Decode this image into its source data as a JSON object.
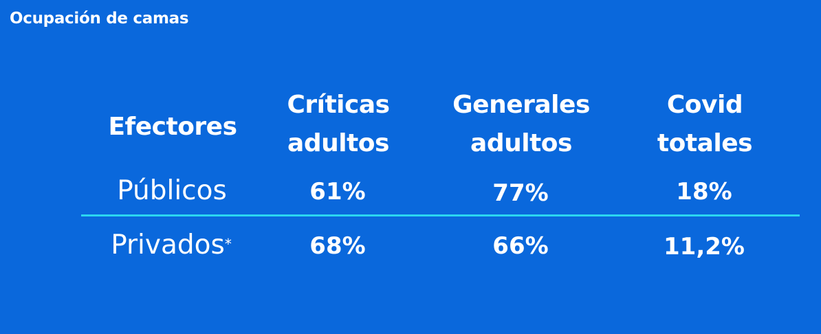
{
  "title": "Ocupación de camas",
  "table": {
    "header": {
      "col0": "Efectores",
      "col1_line1": "Críticas",
      "col1_line2": "adultos",
      "col2_line1": "Generales",
      "col2_line2": "adultos",
      "col3_line1": "Covid",
      "col3_line2": "totales"
    },
    "rows": [
      {
        "label": "Públicos",
        "marker": "",
        "criticas": "61%",
        "generales": "77%",
        "covid": "18%"
      },
      {
        "label": "Privados",
        "marker": "*",
        "criticas": "68%",
        "generales": "66%",
        "covid": "11,2%"
      }
    ],
    "divider_color": "#2bd6f0"
  },
  "colors": {
    "background": "#0a68dc",
    "text": "#ffffff",
    "accent": "#2bd6f0"
  }
}
